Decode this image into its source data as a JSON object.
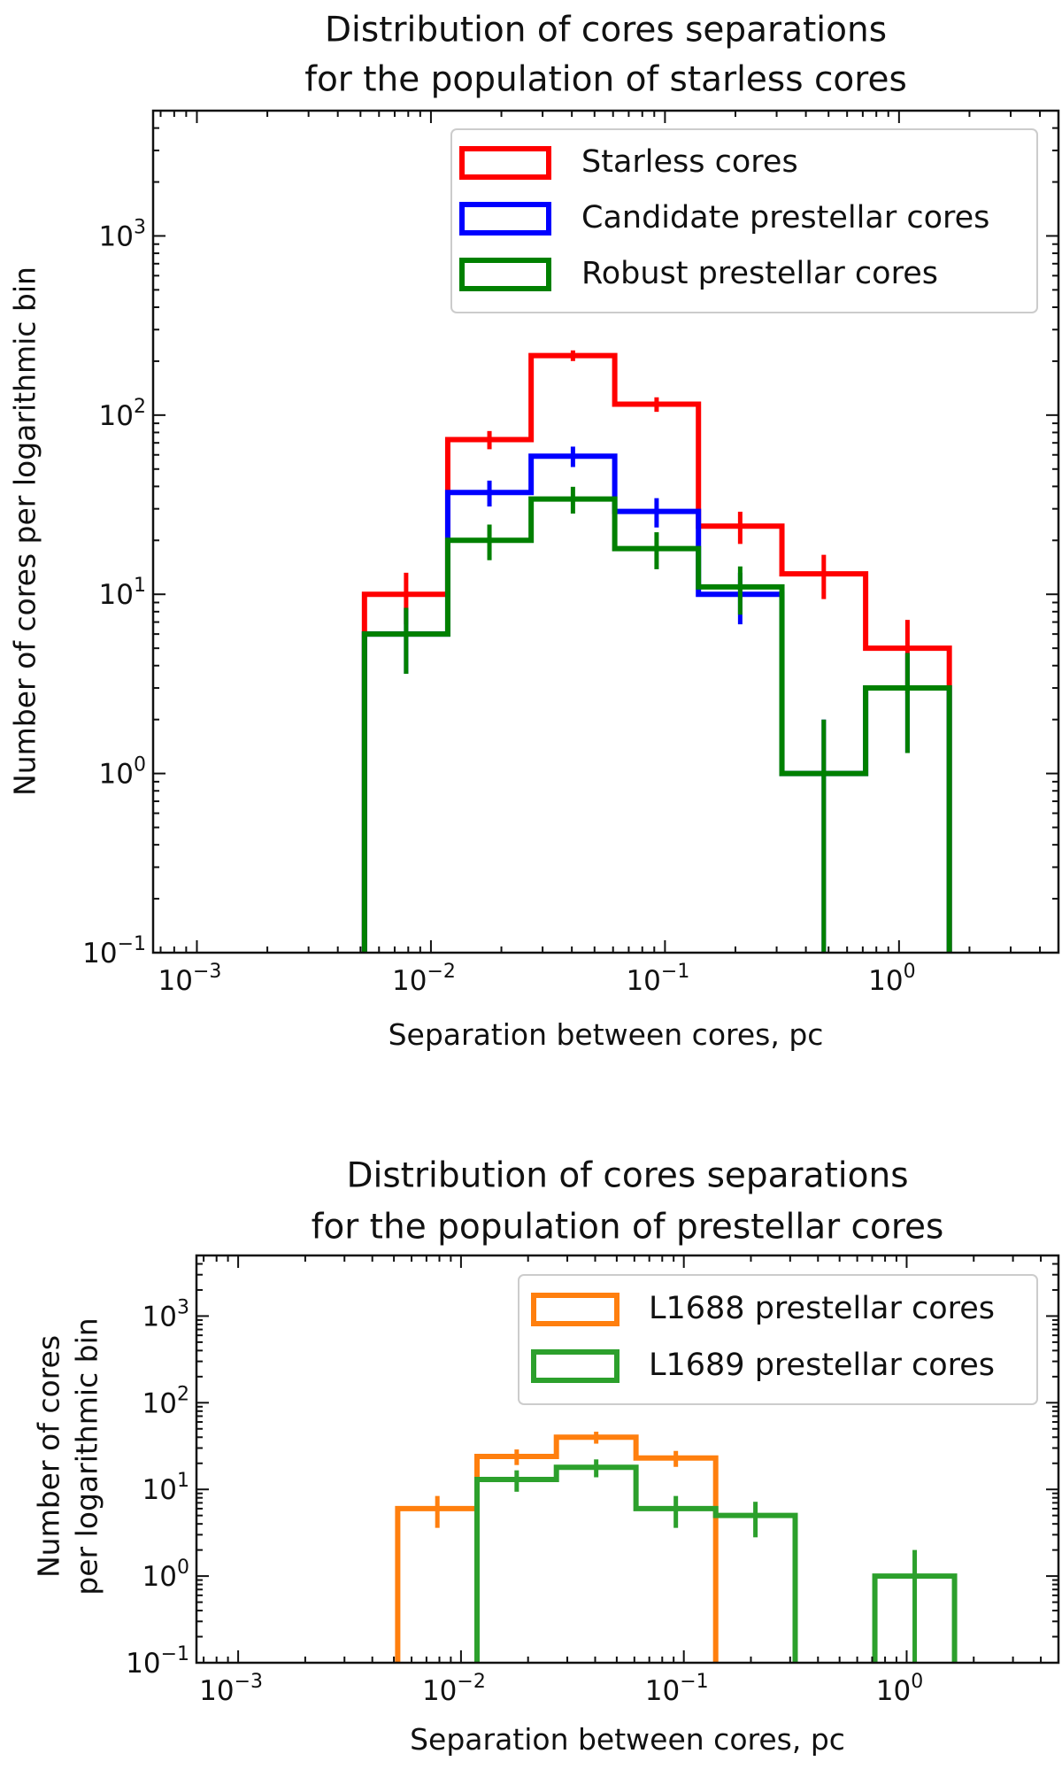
{
  "chart_data": [
    {
      "type": "histogram-step",
      "title_lines": [
        "Distribution of cores separations",
        "for the population of starless cores"
      ],
      "xlabel": "Separation between cores, pc",
      "ylabel_lines": [
        "Number of cores per logarithmic bin"
      ],
      "xscale": "log",
      "yscale": "log",
      "xlim": [
        0.00065,
        4.8
      ],
      "ylim": [
        0.1,
        5000
      ],
      "xticks": [
        {
          "base": "10",
          "exp": "−3",
          "value": 0.001
        },
        {
          "base": "10",
          "exp": "−2",
          "value": 0.01
        },
        {
          "base": "10",
          "exp": "−1",
          "value": 0.1
        },
        {
          "base": "10",
          "exp": "0",
          "value": 1
        }
      ],
      "yticks": [
        {
          "base": "10",
          "exp": "−1",
          "value": 0.1
        },
        {
          "base": "10",
          "exp": "0",
          "value": 1
        },
        {
          "base": "10",
          "exp": "1",
          "value": 10
        },
        {
          "base": "10",
          "exp": "2",
          "value": 100
        },
        {
          "base": "10",
          "exp": "3",
          "value": 1000
        }
      ],
      "bin_edges": [
        0.0052,
        0.0118,
        0.0268,
        0.061,
        0.139,
        0.316,
        0.72,
        1.64
      ],
      "legend_position": "top-right",
      "series": [
        {
          "name": "Starless cores",
          "color": "#ff0000",
          "values": [
            10,
            73,
            215,
            115,
            24,
            13,
            5
          ],
          "errors": [
            3.2,
            8.5,
            14.7,
            10.7,
            4.9,
            3.6,
            2.2
          ]
        },
        {
          "name": "Candidate prestellar cores",
          "color": "#0000ff",
          "values": [
            6,
            37,
            59,
            29,
            10,
            1,
            3
          ],
          "errors": [
            2.4,
            6.1,
            7.7,
            5.4,
            3.2,
            1,
            1.7
          ]
        },
        {
          "name": "Robust prestellar cores",
          "color": "#008000",
          "values": [
            6,
            20,
            34,
            18,
            11,
            1,
            3
          ],
          "errors": [
            2.4,
            4.5,
            5.8,
            4.2,
            3.3,
            1,
            1.7
          ]
        }
      ]
    },
    {
      "type": "histogram-step",
      "title_lines": [
        "Distribution of cores separations",
        "for the population of prestellar cores"
      ],
      "xlabel": "Separation between cores, pc",
      "ylabel_lines": [
        "Number of cores",
        "per logarithmic bin"
      ],
      "xscale": "log",
      "yscale": "log",
      "xlim": [
        0.00065,
        4.8
      ],
      "ylim": [
        0.1,
        5000
      ],
      "xticks": [
        {
          "base": "10",
          "exp": "−3",
          "value": 0.001
        },
        {
          "base": "10",
          "exp": "−2",
          "value": 0.01
        },
        {
          "base": "10",
          "exp": "−1",
          "value": 0.1
        },
        {
          "base": "10",
          "exp": "0",
          "value": 1
        }
      ],
      "yticks": [
        {
          "base": "10",
          "exp": "−1",
          "value": 0.1
        },
        {
          "base": "10",
          "exp": "0",
          "value": 1
        },
        {
          "base": "10",
          "exp": "1",
          "value": 10
        },
        {
          "base": "10",
          "exp": "2",
          "value": 100
        },
        {
          "base": "10",
          "exp": "3",
          "value": 1000
        }
      ],
      "bin_edges": [
        0.0052,
        0.0118,
        0.0268,
        0.061,
        0.139,
        0.316,
        0.72,
        1.64
      ],
      "legend_position": "top-right",
      "series": [
        {
          "name": "L1688 prestellar cores",
          "color": "#ff7f0e",
          "values": [
            6,
            24,
            40,
            23,
            null,
            null,
            null
          ],
          "errors": [
            2.4,
            4.9,
            6.3,
            4.8,
            null,
            null,
            null
          ]
        },
        {
          "name": "L1689 prestellar cores",
          "color": "#2ca02c",
          "values": [
            null,
            13,
            18,
            6,
            5,
            null,
            1
          ],
          "errors": [
            null,
            3.6,
            4.2,
            2.4,
            2.2,
            null,
            1
          ]
        }
      ]
    }
  ]
}
